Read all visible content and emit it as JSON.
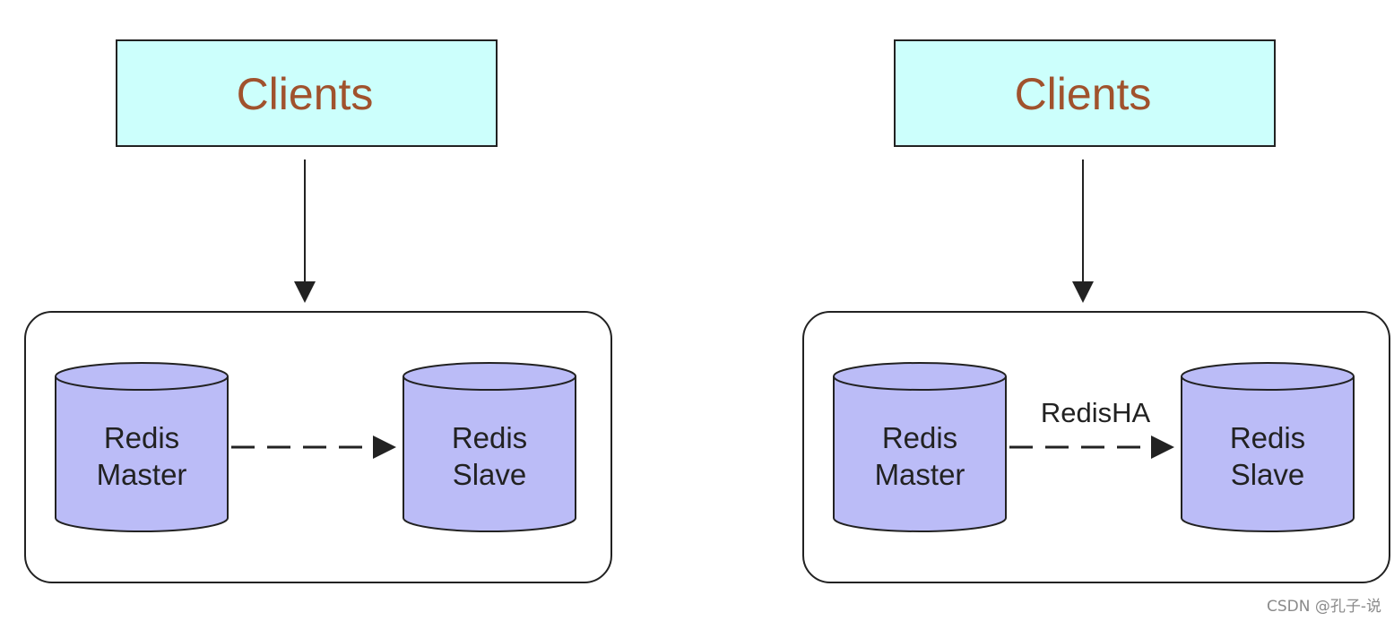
{
  "colors": {
    "client_fill": "#ccfffc",
    "client_text": "#a0522d",
    "db_fill": "#bbbcf7",
    "stroke": "#222222"
  },
  "left": {
    "clients_label": "Clients",
    "master": {
      "line1": "Redis",
      "line2": "Master"
    },
    "slave": {
      "line1": "Redis",
      "line2": "Slave"
    }
  },
  "right": {
    "clients_label": "Clients",
    "master": {
      "line1": "Redis",
      "line2": "Master"
    },
    "slave": {
      "line1": "Redis",
      "line2": "Slave"
    },
    "link_label": "RedisHA"
  },
  "watermark": "CSDN @孔子-说"
}
